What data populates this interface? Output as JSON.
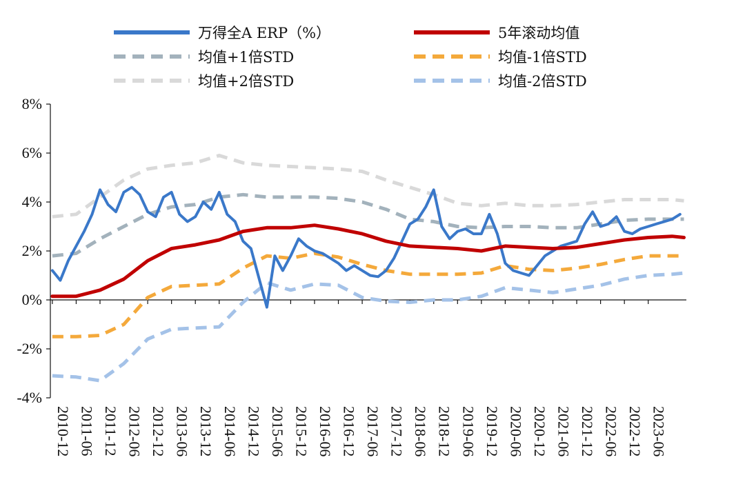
{
  "chart_data": {
    "type": "line",
    "title": "",
    "xlabel": "",
    "ylabel": "",
    "ylim": [
      -4,
      8
    ],
    "y_ticks": [
      "8%",
      "6%",
      "4%",
      "2%",
      "0%",
      "-2%",
      "-4%"
    ],
    "x_ticks": [
      "2010-12",
      "2011-06",
      "2011-12",
      "2012-06",
      "2012-12",
      "2013-06",
      "2013-12",
      "2014-06",
      "2014-12",
      "2015-06",
      "2015-12",
      "2016-06",
      "2016-12",
      "2017-06",
      "2017-12",
      "2018-06",
      "2018-12",
      "2019-06",
      "2019-12",
      "2020-06",
      "2020-12",
      "2021-06",
      "2021-12",
      "2022-06",
      "2022-12",
      "2023-06"
    ],
    "x_range": [
      "2010-12",
      "2024-03"
    ],
    "legend_position": "top",
    "grid": false,
    "series": [
      {
        "name": "万得全A ERP（%）",
        "color": "#3a78c9",
        "style": "solid",
        "points": [
          [
            "2010-12",
            1.2
          ],
          [
            "2011-02",
            0.8
          ],
          [
            "2011-04",
            1.6
          ],
          [
            "2011-06",
            2.2
          ],
          [
            "2011-08",
            2.8
          ],
          [
            "2011-10",
            3.5
          ],
          [
            "2011-12",
            4.5
          ],
          [
            "2012-02",
            3.9
          ],
          [
            "2012-04",
            3.6
          ],
          [
            "2012-06",
            4.4
          ],
          [
            "2012-08",
            4.6
          ],
          [
            "2012-10",
            4.3
          ],
          [
            "2012-12",
            3.6
          ],
          [
            "2013-02",
            3.4
          ],
          [
            "2013-04",
            4.2
          ],
          [
            "2013-06",
            4.4
          ],
          [
            "2013-08",
            3.5
          ],
          [
            "2013-10",
            3.2
          ],
          [
            "2013-12",
            3.4
          ],
          [
            "2014-02",
            4.0
          ],
          [
            "2014-04",
            3.7
          ],
          [
            "2014-06",
            4.4
          ],
          [
            "2014-08",
            3.5
          ],
          [
            "2014-10",
            3.2
          ],
          [
            "2014-12",
            2.4
          ],
          [
            "2015-02",
            2.1
          ],
          [
            "2015-04",
            0.9
          ],
          [
            "2015-06",
            -0.3
          ],
          [
            "2015-08",
            1.8
          ],
          [
            "2015-10",
            1.2
          ],
          [
            "2015-12",
            1.8
          ],
          [
            "2016-02",
            2.5
          ],
          [
            "2016-04",
            2.2
          ],
          [
            "2016-06",
            2.0
          ],
          [
            "2016-08",
            1.9
          ],
          [
            "2016-10",
            1.7
          ],
          [
            "2016-12",
            1.5
          ],
          [
            "2017-02",
            1.2
          ],
          [
            "2017-04",
            1.4
          ],
          [
            "2017-06",
            1.2
          ],
          [
            "2017-08",
            1.0
          ],
          [
            "2017-10",
            0.95
          ],
          [
            "2017-12",
            1.2
          ],
          [
            "2018-02",
            1.7
          ],
          [
            "2018-04",
            2.4
          ],
          [
            "2018-06",
            3.1
          ],
          [
            "2018-08",
            3.3
          ],
          [
            "2018-10",
            3.8
          ],
          [
            "2018-12",
            4.5
          ],
          [
            "2019-02",
            3.0
          ],
          [
            "2019-04",
            2.5
          ],
          [
            "2019-06",
            2.8
          ],
          [
            "2019-08",
            2.9
          ],
          [
            "2019-10",
            2.7
          ],
          [
            "2019-12",
            2.7
          ],
          [
            "2020-02",
            3.5
          ],
          [
            "2020-04",
            2.7
          ],
          [
            "2020-06",
            1.5
          ],
          [
            "2020-08",
            1.2
          ],
          [
            "2020-10",
            1.1
          ],
          [
            "2020-12",
            1.0
          ],
          [
            "2021-02",
            1.4
          ],
          [
            "2021-04",
            1.8
          ],
          [
            "2021-06",
            2.0
          ],
          [
            "2021-08",
            2.2
          ],
          [
            "2021-10",
            2.3
          ],
          [
            "2021-12",
            2.4
          ],
          [
            "2022-02",
            3.1
          ],
          [
            "2022-04",
            3.6
          ],
          [
            "2022-06",
            3.0
          ],
          [
            "2022-08",
            3.1
          ],
          [
            "2022-10",
            3.4
          ],
          [
            "2022-12",
            2.8
          ],
          [
            "2023-02",
            2.7
          ],
          [
            "2023-04",
            2.9
          ],
          [
            "2023-06",
            3.0
          ],
          [
            "2023-08",
            3.1
          ],
          [
            "2023-10",
            3.2
          ],
          [
            "2023-12",
            3.3
          ],
          [
            "2024-02",
            3.5
          ]
        ]
      },
      {
        "name": "5年滚动均值",
        "color": "#c00000",
        "style": "solid",
        "points": [
          [
            "2010-12",
            0.15
          ],
          [
            "2011-06",
            0.15
          ],
          [
            "2011-12",
            0.4
          ],
          [
            "2012-06",
            0.85
          ],
          [
            "2012-12",
            1.6
          ],
          [
            "2013-06",
            2.1
          ],
          [
            "2013-12",
            2.25
          ],
          [
            "2014-06",
            2.45
          ],
          [
            "2014-12",
            2.8
          ],
          [
            "2015-06",
            2.95
          ],
          [
            "2015-12",
            2.95
          ],
          [
            "2016-06",
            3.05
          ],
          [
            "2016-12",
            2.9
          ],
          [
            "2017-06",
            2.7
          ],
          [
            "2017-12",
            2.4
          ],
          [
            "2018-06",
            2.2
          ],
          [
            "2018-12",
            2.15
          ],
          [
            "2019-06",
            2.1
          ],
          [
            "2019-12",
            2.0
          ],
          [
            "2020-06",
            2.2
          ],
          [
            "2020-12",
            2.15
          ],
          [
            "2021-06",
            2.1
          ],
          [
            "2021-12",
            2.15
          ],
          [
            "2022-06",
            2.3
          ],
          [
            "2022-12",
            2.45
          ],
          [
            "2023-06",
            2.55
          ],
          [
            "2023-12",
            2.6
          ],
          [
            "2024-03",
            2.55
          ]
        ]
      },
      {
        "name": "均值+1倍STD",
        "color": "#a3b2bc",
        "style": "dashed",
        "points": [
          [
            "2010-12",
            1.8
          ],
          [
            "2011-06",
            1.9
          ],
          [
            "2011-12",
            2.5
          ],
          [
            "2012-06",
            3.0
          ],
          [
            "2012-12",
            3.5
          ],
          [
            "2013-06",
            3.8
          ],
          [
            "2013-12",
            3.9
          ],
          [
            "2014-06",
            4.2
          ],
          [
            "2014-12",
            4.3
          ],
          [
            "2015-06",
            4.2
          ],
          [
            "2015-12",
            4.2
          ],
          [
            "2016-06",
            4.2
          ],
          [
            "2016-12",
            4.15
          ],
          [
            "2017-06",
            4.0
          ],
          [
            "2017-12",
            3.7
          ],
          [
            "2018-06",
            3.3
          ],
          [
            "2018-12",
            3.2
          ],
          [
            "2019-06",
            3.0
          ],
          [
            "2019-12",
            2.95
          ],
          [
            "2020-06",
            3.0
          ],
          [
            "2020-12",
            3.0
          ],
          [
            "2021-06",
            2.95
          ],
          [
            "2021-12",
            2.95
          ],
          [
            "2022-06",
            3.1
          ],
          [
            "2022-12",
            3.25
          ],
          [
            "2023-06",
            3.3
          ],
          [
            "2023-12",
            3.3
          ],
          [
            "2024-03",
            3.3
          ]
        ]
      },
      {
        "name": "均值-1倍STD",
        "color": "#f4a93b",
        "style": "dashed",
        "points": [
          [
            "2010-12",
            -1.5
          ],
          [
            "2011-06",
            -1.5
          ],
          [
            "2011-12",
            -1.45
          ],
          [
            "2012-06",
            -1.0
          ],
          [
            "2012-12",
            0.1
          ],
          [
            "2013-06",
            0.55
          ],
          [
            "2013-12",
            0.6
          ],
          [
            "2014-06",
            0.65
          ],
          [
            "2014-12",
            1.3
          ],
          [
            "2015-06",
            1.8
          ],
          [
            "2015-12",
            1.7
          ],
          [
            "2016-06",
            1.9
          ],
          [
            "2016-12",
            1.75
          ],
          [
            "2017-06",
            1.45
          ],
          [
            "2017-12",
            1.2
          ],
          [
            "2018-06",
            1.05
          ],
          [
            "2018-12",
            1.05
          ],
          [
            "2019-06",
            1.05
          ],
          [
            "2019-12",
            1.1
          ],
          [
            "2020-06",
            1.4
          ],
          [
            "2020-12",
            1.25
          ],
          [
            "2021-06",
            1.2
          ],
          [
            "2021-12",
            1.3
          ],
          [
            "2022-06",
            1.45
          ],
          [
            "2022-12",
            1.65
          ],
          [
            "2023-06",
            1.8
          ],
          [
            "2023-12",
            1.8
          ],
          [
            "2024-03",
            1.8
          ]
        ]
      },
      {
        "name": "均值+2倍STD",
        "color": "#d9d9d9",
        "style": "dashed",
        "points": [
          [
            "2010-12",
            3.4
          ],
          [
            "2011-06",
            3.5
          ],
          [
            "2011-12",
            4.2
          ],
          [
            "2012-06",
            4.9
          ],
          [
            "2012-12",
            5.35
          ],
          [
            "2013-06",
            5.5
          ],
          [
            "2013-12",
            5.6
          ],
          [
            "2014-06",
            5.9
          ],
          [
            "2014-12",
            5.6
          ],
          [
            "2015-06",
            5.5
          ],
          [
            "2015-12",
            5.45
          ],
          [
            "2016-06",
            5.4
          ],
          [
            "2016-12",
            5.35
          ],
          [
            "2017-06",
            5.25
          ],
          [
            "2017-12",
            4.9
          ],
          [
            "2018-06",
            4.6
          ],
          [
            "2018-12",
            4.3
          ],
          [
            "2019-06",
            3.95
          ],
          [
            "2019-12",
            3.85
          ],
          [
            "2020-06",
            3.95
          ],
          [
            "2020-12",
            3.85
          ],
          [
            "2021-06",
            3.85
          ],
          [
            "2021-12",
            3.9
          ],
          [
            "2022-06",
            4.0
          ],
          [
            "2022-12",
            4.1
          ],
          [
            "2023-06",
            4.1
          ],
          [
            "2023-12",
            4.1
          ],
          [
            "2024-03",
            4.05
          ]
        ]
      },
      {
        "name": "均值-2倍STD",
        "color": "#a4c2e8",
        "style": "dashed",
        "points": [
          [
            "2010-12",
            -3.1
          ],
          [
            "2011-06",
            -3.15
          ],
          [
            "2011-12",
            -3.3
          ],
          [
            "2012-06",
            -2.6
          ],
          [
            "2012-12",
            -1.6
          ],
          [
            "2013-06",
            -1.2
          ],
          [
            "2013-12",
            -1.15
          ],
          [
            "2014-06",
            -1.1
          ],
          [
            "2014-12",
            -0.1
          ],
          [
            "2015-06",
            0.7
          ],
          [
            "2015-12",
            0.4
          ],
          [
            "2016-06",
            0.65
          ],
          [
            "2016-12",
            0.6
          ],
          [
            "2017-06",
            0.1
          ],
          [
            "2017-12",
            -0.05
          ],
          [
            "2018-06",
            -0.1
          ],
          [
            "2018-12",
            0.0
          ],
          [
            "2019-06",
            0.0
          ],
          [
            "2019-12",
            0.15
          ],
          [
            "2020-06",
            0.5
          ],
          [
            "2020-12",
            0.4
          ],
          [
            "2021-06",
            0.3
          ],
          [
            "2021-12",
            0.45
          ],
          [
            "2022-06",
            0.6
          ],
          [
            "2022-12",
            0.85
          ],
          [
            "2023-06",
            1.0
          ],
          [
            "2023-12",
            1.05
          ],
          [
            "2024-03",
            1.1
          ]
        ]
      }
    ]
  }
}
